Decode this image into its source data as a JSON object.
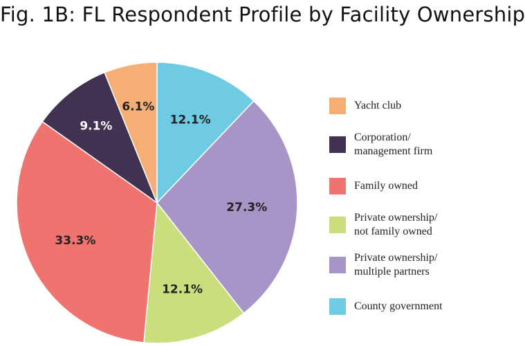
{
  "chart_data": {
    "type": "pie",
    "title": "Fig. 1B: FL Respondent Profile by Facility Ownership",
    "legend_position": "right",
    "slices": [
      {
        "label": "County government",
        "value": 12.1,
        "display": "12.1%",
        "color": "#6ecbe3",
        "text_color": "#222222"
      },
      {
        "label": "Private ownership/\nmultiple partners",
        "value": 27.3,
        "display": "27.3%",
        "color": "#a895c8",
        "text_color": "#222222"
      },
      {
        "label": "Private ownership/\nnot family owned",
        "value": 12.1,
        "display": "12.1%",
        "color": "#c9de7c",
        "text_color": "#222222"
      },
      {
        "label": "Family owned",
        "value": 33.3,
        "display": "33.3%",
        "color": "#ef7470",
        "text_color": "#222222"
      },
      {
        "label": "Corporation/\nmanagement firm",
        "value": 9.1,
        "display": "9.1%",
        "color": "#413252",
        "text_color": "#ffffff"
      },
      {
        "label": "Yacht club",
        "value": 6.1,
        "display": "6.1%",
        "color": "#f5ae74",
        "text_color": "#222222"
      }
    ],
    "legend_order": [
      "Yacht club",
      "Corporation/\nmanagement firm",
      "Family owned",
      "Private ownership/\nnot family owned",
      "Private ownership/\nmultiple partners",
      "County government"
    ]
  }
}
